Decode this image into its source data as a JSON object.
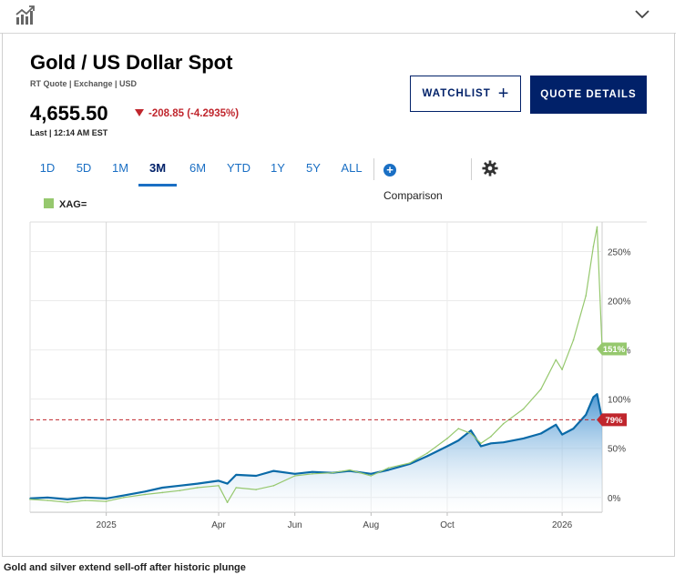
{
  "header": {
    "chart_icon": "line-chart-icon",
    "collapse_icon": "chevron-down-icon"
  },
  "quote": {
    "title": "Gold / US Dollar Spot",
    "subtitle": "RT Quote | Exchange | USD",
    "price": "4,655.50",
    "change": "-208.85 (-4.2935%)",
    "last": "Last | 12:14 AM EST"
  },
  "buttons": {
    "watchlist": "WATCHLIST",
    "watchlist_icon": "plus-icon",
    "quote_details": "QUOTE DETAILS"
  },
  "tabs": [
    {
      "label": "1D",
      "active": false
    },
    {
      "label": "5D",
      "active": false
    },
    {
      "label": "1M",
      "active": false
    },
    {
      "label": "3M",
      "active": true
    },
    {
      "label": "6M",
      "active": false
    },
    {
      "label": "YTD",
      "active": false
    },
    {
      "label": "1Y",
      "active": false
    },
    {
      "label": "5Y",
      "active": false
    },
    {
      "label": "ALL",
      "active": false
    }
  ],
  "comparison": {
    "label": "Comparison",
    "icon": "plus-circle-icon"
  },
  "settings_icon": "gear-icon",
  "legend": {
    "label": "XAG=",
    "color": "#96c86e"
  },
  "colors": {
    "gold": "#0a6aa8",
    "silver": "#96c86e",
    "down": "#c0262d",
    "brand": "#012169"
  },
  "chart_data": {
    "type": "area",
    "x_tick_labels": [
      "2025",
      "Apr",
      "Jun",
      "Aug",
      "Oct",
      "2026"
    ],
    "y_tick_labels": [
      "0%",
      "50%",
      "100%",
      "150%",
      "200%",
      "250%"
    ],
    "ylim": [
      -15,
      280
    ],
    "xlim": [
      "2024-11-01",
      "2026-02-02"
    ],
    "grid": true,
    "y_axis_side": "right",
    "reference_line": {
      "value": 79,
      "style": "dashed",
      "color": "#c0262d"
    },
    "end_labels": [
      {
        "series": "gold",
        "text": "79%",
        "value": 79
      },
      {
        "series": "XAG=",
        "text": "151%",
        "value": 151
      }
    ],
    "series": [
      {
        "name": "",
        "role": "gold",
        "fill": true,
        "x": [
          "2024-11-01",
          "2024-11-15",
          "2024-12-01",
          "2024-12-15",
          "2025-01-01",
          "2025-01-15",
          "2025-02-01",
          "2025-02-15",
          "2025-03-01",
          "2025-03-15",
          "2025-04-01",
          "2025-04-08",
          "2025-04-15",
          "2025-05-01",
          "2025-05-15",
          "2025-06-01",
          "2025-06-15",
          "2025-07-01",
          "2025-07-15",
          "2025-08-01",
          "2025-08-15",
          "2025-09-01",
          "2025-09-15",
          "2025-10-01",
          "2025-10-10",
          "2025-10-20",
          "2025-10-28",
          "2025-11-05",
          "2025-11-15",
          "2025-12-01",
          "2025-12-15",
          "2025-12-27",
          "2026-01-01",
          "2026-01-10",
          "2026-01-20",
          "2026-01-26",
          "2026-01-29",
          "2026-02-02"
        ],
        "values": [
          -1,
          0,
          -2,
          0,
          -1,
          2,
          6,
          10,
          12,
          14,
          17,
          14,
          23,
          22,
          27,
          24,
          26,
          25,
          27,
          24,
          28,
          34,
          42,
          52,
          58,
          68,
          52,
          55,
          56,
          60,
          65,
          74,
          64,
          70,
          84,
          102,
          105,
          79
        ]
      },
      {
        "name": "XAG=",
        "role": "silver",
        "fill": false,
        "x": [
          "2024-11-01",
          "2024-11-15",
          "2024-12-01",
          "2024-12-15",
          "2025-01-01",
          "2025-01-15",
          "2025-02-01",
          "2025-02-15",
          "2025-03-01",
          "2025-03-15",
          "2025-04-01",
          "2025-04-08",
          "2025-04-15",
          "2025-05-01",
          "2025-05-15",
          "2025-06-01",
          "2025-06-15",
          "2025-07-01",
          "2025-07-15",
          "2025-08-01",
          "2025-08-15",
          "2025-09-01",
          "2025-09-15",
          "2025-10-01",
          "2025-10-10",
          "2025-10-20",
          "2025-10-28",
          "2025-11-05",
          "2025-11-15",
          "2025-12-01",
          "2025-12-15",
          "2025-12-27",
          "2026-01-01",
          "2026-01-10",
          "2026-01-20",
          "2026-01-26",
          "2026-01-29",
          "2026-02-02"
        ],
        "values": [
          -2,
          -3,
          -5,
          -3,
          -4,
          0,
          3,
          5,
          7,
          10,
          12,
          -5,
          10,
          8,
          12,
          22,
          24,
          25,
          28,
          22,
          30,
          35,
          45,
          60,
          70,
          65,
          55,
          62,
          75,
          90,
          110,
          140,
          130,
          160,
          205,
          255,
          275,
          151
        ]
      }
    ]
  },
  "headline": "Gold and silver extend sell-off after historic plunge"
}
